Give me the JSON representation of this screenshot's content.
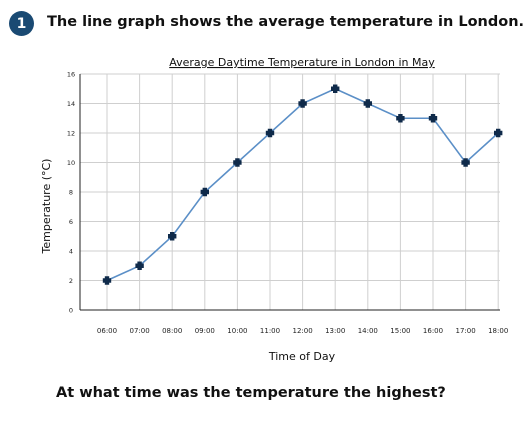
{
  "question": {
    "number": "1",
    "intro": "The line graph shows the average temperature in London.",
    "prompt": "At what time was the temperature the highest?"
  },
  "colors": {
    "badge": "#1a4a73",
    "line": "#5b8fc7",
    "marker": "#0f2a4a",
    "grid": "#cfcfcf",
    "axis": "#222222"
  },
  "chart_data": {
    "type": "line",
    "title": "Average Daytime Temperature in London in May",
    "xlabel": "Time of Day",
    "ylabel": "Temperature (°C)",
    "categories": [
      "06:00",
      "07:00",
      "08:00",
      "09:00",
      "10:00",
      "11:00",
      "12:00",
      "13:00",
      "14:00",
      "15:00",
      "16:00",
      "17:00",
      "18:00"
    ],
    "series": [
      {
        "values": [
          2,
          3,
          5,
          8,
          10,
          12,
          14,
          15,
          14,
          13,
          13,
          10,
          12
        ]
      }
    ],
    "ylim": [
      0,
      16
    ],
    "yticks": [
      0,
      2,
      4,
      6,
      8,
      10,
      12,
      14,
      16
    ],
    "grid": true,
    "marker": "cross"
  }
}
